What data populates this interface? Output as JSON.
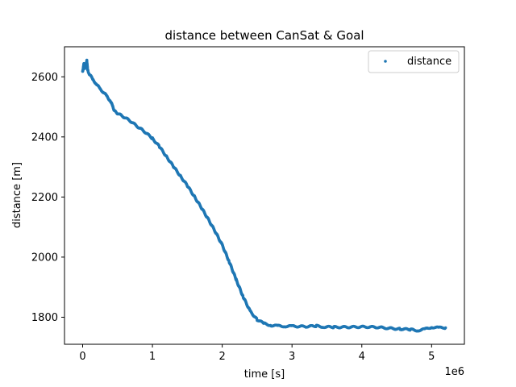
{
  "chart_data": {
    "type": "scatter",
    "title": "distance between CanSat & Goal",
    "xlabel": "time [s]",
    "ylabel": "distance [m]",
    "x_offset_label": "1e6",
    "xlim": [
      -0.26,
      5.47
    ],
    "ylim": [
      1710,
      2700
    ],
    "x_ticks": [
      0,
      1,
      2,
      3,
      4,
      5
    ],
    "x_tick_labels": [
      "0",
      "1",
      "2",
      "3",
      "4",
      "5"
    ],
    "y_ticks": [
      1800,
      2000,
      2200,
      2400,
      2600
    ],
    "y_tick_labels": [
      "1800",
      "2000",
      "2200",
      "2400",
      "2600"
    ],
    "grid": false,
    "legend_position": "top-right",
    "point_color": "#1f77b4",
    "series": [
      {
        "name": "distance",
        "x": [
          0.0,
          0.01,
          0.02,
          0.03,
          0.04,
          0.05,
          0.06,
          0.07,
          0.08,
          0.1,
          0.15,
          0.2,
          0.25,
          0.3,
          0.35,
          0.4,
          0.43,
          0.45,
          0.47,
          0.5,
          0.55,
          0.6,
          0.65,
          0.7,
          0.75,
          0.8,
          0.85,
          0.9,
          1.0,
          1.1,
          1.2,
          1.3,
          1.4,
          1.5,
          1.6,
          1.7,
          1.8,
          1.9,
          2.0,
          2.1,
          2.2,
          2.3,
          2.4,
          2.5,
          2.6,
          2.7,
          2.8,
          2.9,
          3.0,
          3.2,
          3.35,
          3.45,
          3.6,
          3.8,
          4.0,
          4.2,
          4.4,
          4.55,
          4.7,
          4.8,
          4.9,
          5.0,
          5.1,
          5.2
        ],
        "y": [
          2618,
          2632,
          2644,
          2628,
          2640,
          2635,
          2655,
          2625,
          2615,
          2608,
          2590,
          2575,
          2560,
          2548,
          2535,
          2518,
          2502,
          2490,
          2484,
          2478,
          2472,
          2465,
          2458,
          2450,
          2441,
          2432,
          2424,
          2415,
          2395,
          2368,
          2335,
          2302,
          2270,
          2238,
          2202,
          2165,
          2126,
          2085,
          2040,
          1985,
          1925,
          1868,
          1820,
          1792,
          1779,
          1773,
          1771,
          1770,
          1770,
          1769,
          1771,
          1768,
          1767,
          1767,
          1768,
          1767,
          1763,
          1761,
          1759,
          1756,
          1760,
          1767,
          1765,
          1765
        ]
      }
    ]
  }
}
